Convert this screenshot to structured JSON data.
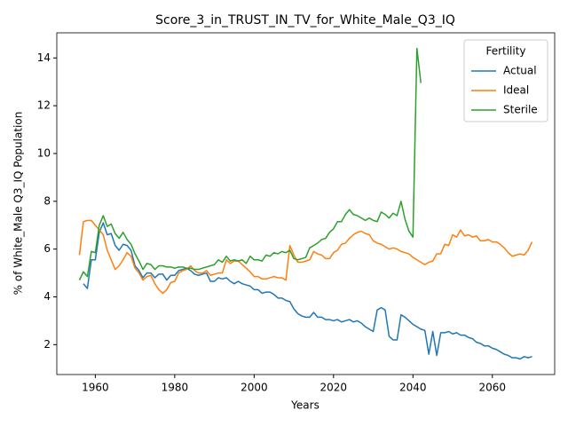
{
  "chart_data": {
    "type": "line",
    "title": "Score_3_in_TRUST_IN_TV_for_White_Male_Q3_IQ",
    "xlabel": "Years",
    "ylabel": "% of White_Male Q3_IQ Population",
    "legend_title": "Fertility",
    "legend_loc": "upper right",
    "grid": false,
    "x": [
      1956,
      1957,
      1958,
      1959,
      1960,
      1961,
      1962,
      1963,
      1964,
      1965,
      1966,
      1967,
      1968,
      1969,
      1970,
      1971,
      1972,
      1973,
      1974,
      1975,
      1976,
      1977,
      1978,
      1979,
      1980,
      1981,
      1982,
      1983,
      1984,
      1985,
      1986,
      1987,
      1988,
      1989,
      1990,
      1991,
      1992,
      1993,
      1994,
      1995,
      1996,
      1997,
      1998,
      1999,
      2000,
      2001,
      2002,
      2003,
      2004,
      2005,
      2006,
      2007,
      2008,
      2009,
      2010,
      2011,
      2012,
      2013,
      2014,
      2015,
      2016,
      2017,
      2018,
      2019,
      2020,
      2021,
      2022,
      2023,
      2024,
      2025,
      2026,
      2027,
      2028,
      2029,
      2030,
      2031,
      2032,
      2033,
      2034,
      2035,
      2036,
      2037,
      2038,
      2039,
      2040,
      2041,
      2042,
      2043,
      2044,
      2045,
      2046,
      2047,
      2048,
      2049,
      2050,
      2051,
      2052,
      2053,
      2054,
      2055,
      2056,
      2057,
      2058,
      2059,
      2060,
      2061,
      2062,
      2063,
      2064,
      2065,
      2066,
      2067,
      2068,
      2069,
      2070
    ],
    "series": [
      {
        "name": "Actual",
        "color": "#1f77b4",
        "values": [
          null,
          4.55,
          4.35,
          5.55,
          5.55,
          6.7,
          7.1,
          6.6,
          6.65,
          6.15,
          5.95,
          6.2,
          6.15,
          5.95,
          5.3,
          5.1,
          4.8,
          5.0,
          5.0,
          4.8,
          4.95,
          4.95,
          4.7,
          4.9,
          4.9,
          5.1,
          5.15,
          5.2,
          5.1,
          4.95,
          4.9,
          4.95,
          5.0,
          4.65,
          4.65,
          4.8,
          4.75,
          4.8,
          4.65,
          4.55,
          4.65,
          4.55,
          4.5,
          4.45,
          4.3,
          4.3,
          4.15,
          4.2,
          4.2,
          4.1,
          3.95,
          3.95,
          3.85,
          3.8,
          3.5,
          3.3,
          3.2,
          3.15,
          3.15,
          3.35,
          3.15,
          3.15,
          3.05,
          3.05,
          3.0,
          3.05,
          2.95,
          3.0,
          3.05,
          2.95,
          3.0,
          2.9,
          2.75,
          2.65,
          2.55,
          3.45,
          3.55,
          3.45,
          2.35,
          2.2,
          2.2,
          3.25,
          3.15,
          3.0,
          2.85,
          2.75,
          2.65,
          2.6,
          1.6,
          2.55,
          1.55,
          2.5,
          2.5,
          2.55,
          2.45,
          2.5,
          2.4,
          2.4,
          2.3,
          2.25,
          2.1,
          2.05,
          1.95,
          1.95,
          1.85,
          1.8,
          1.7,
          1.6,
          1.55,
          1.45,
          1.45,
          1.4,
          1.5,
          1.45,
          1.5
        ]
      },
      {
        "name": "Ideal",
        "color": "#ff7f0e",
        "values": [
          5.75,
          7.15,
          7.2,
          7.2,
          7.0,
          6.8,
          6.6,
          5.95,
          5.55,
          5.15,
          5.3,
          5.55,
          5.85,
          5.7,
          5.2,
          5.0,
          4.7,
          4.85,
          4.9,
          4.55,
          4.3,
          4.15,
          4.3,
          4.6,
          4.65,
          5.0,
          5.1,
          5.15,
          5.3,
          5.1,
          5.0,
          5.0,
          5.1,
          4.9,
          4.95,
          5.0,
          5.0,
          5.55,
          5.4,
          5.5,
          5.5,
          5.35,
          5.2,
          5.05,
          4.85,
          4.85,
          4.75,
          4.75,
          4.8,
          4.85,
          4.8,
          4.8,
          4.7,
          6.15,
          5.75,
          5.45,
          5.45,
          5.5,
          5.55,
          5.9,
          5.8,
          5.75,
          5.6,
          5.6,
          5.85,
          5.95,
          6.2,
          6.25,
          6.45,
          6.6,
          6.7,
          6.75,
          6.65,
          6.6,
          6.35,
          6.25,
          6.2,
          6.1,
          6.0,
          6.05,
          6.0,
          5.9,
          5.85,
          5.8,
          5.65,
          5.55,
          5.45,
          5.35,
          5.45,
          5.5,
          5.8,
          5.8,
          6.2,
          6.15,
          6.6,
          6.5,
          6.8,
          6.55,
          6.6,
          6.5,
          6.55,
          6.35,
          6.35,
          6.4,
          6.3,
          6.3,
          6.2,
          6.05,
          5.85,
          5.7,
          5.75,
          5.8,
          5.75,
          5.95,
          6.3
        ]
      },
      {
        "name": "Sterile",
        "color": "#2ca02c",
        "values": [
          4.7,
          5.05,
          4.85,
          5.9,
          5.85,
          7.0,
          7.4,
          6.95,
          7.05,
          6.65,
          6.45,
          6.7,
          6.4,
          6.2,
          5.8,
          5.5,
          5.15,
          5.4,
          5.35,
          5.15,
          5.3,
          5.3,
          5.25,
          5.25,
          5.2,
          5.25,
          5.25,
          5.2,
          5.2,
          5.15,
          5.15,
          5.2,
          5.25,
          5.3,
          5.35,
          5.55,
          5.45,
          5.7,
          5.5,
          5.55,
          5.5,
          5.55,
          5.4,
          5.7,
          5.55,
          5.55,
          5.5,
          5.75,
          5.7,
          5.85,
          5.8,
          5.9,
          5.85,
          5.95,
          5.6,
          5.55,
          5.6,
          5.65,
          6.05,
          6.15,
          6.25,
          6.4,
          6.45,
          6.7,
          6.85,
          7.15,
          7.15,
          7.45,
          7.65,
          7.45,
          7.4,
          7.3,
          7.2,
          7.3,
          7.2,
          7.15,
          7.55,
          7.45,
          7.3,
          7.5,
          7.4,
          8.0,
          7.25,
          6.75,
          6.5,
          14.4,
          12.95,
          null,
          null,
          null,
          null,
          null,
          null,
          null,
          null,
          null,
          null,
          null,
          null,
          null,
          null,
          null,
          null,
          null,
          null,
          null,
          null,
          null,
          null,
          null,
          null,
          null,
          null,
          null,
          null
        ]
      }
    ],
    "xlim": [
      1950.3,
      2075.7
    ],
    "xticks": [
      1960,
      1980,
      2000,
      2020,
      2040,
      2060
    ],
    "ylim": [
      0.75,
      15.05
    ],
    "yticks": [
      2,
      4,
      6,
      8,
      10,
      12,
      14
    ]
  }
}
